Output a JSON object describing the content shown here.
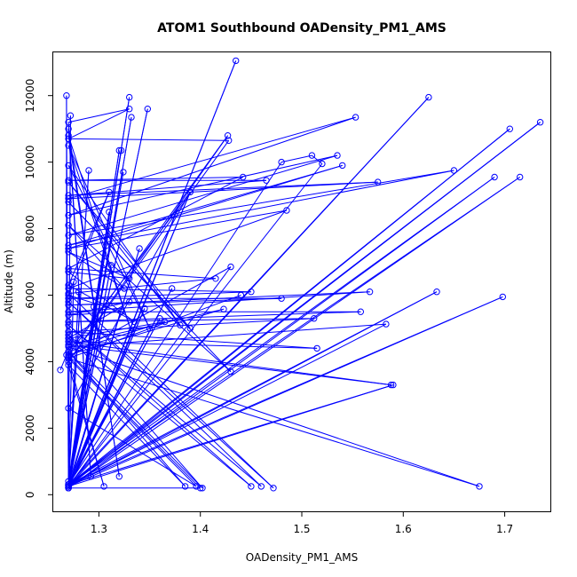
{
  "chart_data": {
    "type": "line",
    "title": "ATOM1 Southbound OADensity_PM1_AMS",
    "xlabel": "OADensity_PM1_AMS",
    "ylabel": "Altitude (m)",
    "xlim": [
      1.255,
      1.745
    ],
    "ylim": [
      -500,
      13300
    ],
    "x_ticks": [
      1.3,
      1.4,
      1.5,
      1.6,
      1.7
    ],
    "y_ticks": [
      0,
      2000,
      4000,
      6000,
      8000,
      10000,
      12000
    ],
    "series_color": "#0000ff",
    "markers": "open-circle",
    "points": [
      [
        1.262,
        3750
      ],
      [
        1.268,
        4200
      ],
      [
        1.268,
        12000
      ],
      [
        1.27,
        200
      ],
      [
        1.272,
        11400
      ],
      [
        1.27,
        300
      ],
      [
        1.275,
        6400
      ],
      [
        1.27,
        250
      ],
      [
        1.28,
        6100
      ],
      [
        1.27,
        300
      ],
      [
        1.29,
        9750
      ],
      [
        1.27,
        400
      ],
      [
        1.295,
        5650
      ],
      [
        1.27,
        250
      ],
      [
        1.31,
        8500
      ],
      [
        1.27,
        300
      ],
      [
        1.312,
        6900
      ],
      [
        1.27,
        200
      ],
      [
        1.32,
        10350
      ],
      [
        1.27,
        300
      ],
      [
        1.322,
        10350
      ],
      [
        1.27,
        250
      ],
      [
        1.324,
        9700
      ],
      [
        1.27,
        300
      ],
      [
        1.33,
        11950
      ],
      [
        1.27,
        200
      ],
      [
        1.332,
        11350
      ],
      [
        1.27,
        250
      ],
      [
        1.348,
        11600
      ],
      [
        1.27,
        300
      ],
      [
        1.34,
        7400
      ],
      [
        1.27,
        200
      ],
      [
        1.345,
        5600
      ],
      [
        1.27,
        300
      ],
      [
        1.36,
        5300
      ],
      [
        1.27,
        250
      ],
      [
        1.372,
        6200
      ],
      [
        1.27,
        300
      ],
      [
        1.39,
        9100
      ],
      [
        1.27,
        200
      ],
      [
        1.4,
        200
      ],
      [
        1.27,
        4150
      ],
      [
        1.43,
        6850
      ],
      [
        1.27,
        250
      ],
      [
        1.435,
        13050
      ],
      [
        1.27,
        300
      ],
      [
        1.48,
        10000
      ],
      [
        1.51,
        10200
      ],
      [
        1.52,
        9950
      ],
      [
        1.27,
        250
      ],
      [
        1.625,
        11950
      ],
      [
        1.27,
        300
      ],
      [
        1.705,
        11000
      ],
      [
        1.27,
        250
      ],
      [
        1.735,
        11200
      ],
      [
        1.27,
        300
      ],
      [
        1.69,
        9550
      ],
      [
        1.27,
        200
      ],
      [
        1.715,
        9550
      ],
      [
        1.27,
        300
      ],
      [
        1.633,
        6100
      ],
      [
        1.27,
        250
      ],
      [
        1.698,
        5950
      ],
      [
        1.27,
        300
      ],
      [
        1.59,
        3300
      ],
      [
        1.27,
        250
      ],
      [
        1.583,
        5130
      ],
      [
        1.27,
        4450
      ],
      [
        1.675,
        250
      ],
      [
        1.27,
        4100
      ],
      [
        1.305,
        250
      ],
      [
        1.27,
        3900
      ],
      [
        1.385,
        250
      ],
      [
        1.27,
        4300
      ],
      [
        1.402,
        200
      ],
      [
        1.27,
        4800
      ],
      [
        1.45,
        250
      ],
      [
        1.27,
        5100
      ],
      [
        1.46,
        250
      ],
      [
        1.27,
        5800
      ],
      [
        1.472,
        200
      ],
      [
        1.27,
        6050
      ],
      [
        1.415,
        6500
      ],
      [
        1.27,
        6800
      ],
      [
        1.442,
        9550
      ],
      [
        1.27,
        9450
      ],
      [
        1.465,
        9450
      ],
      [
        1.27,
        9000
      ],
      [
        1.575,
        9400
      ],
      [
        1.27,
        8900
      ],
      [
        1.553,
        11350
      ],
      [
        1.27,
        8400
      ],
      [
        1.535,
        10200
      ],
      [
        1.27,
        7800
      ],
      [
        1.65,
        9750
      ],
      [
        1.27,
        7500
      ],
      [
        1.54,
        9900
      ],
      [
        1.27,
        7400
      ],
      [
        1.485,
        8550
      ],
      [
        1.27,
        6200
      ],
      [
        1.45,
        6100
      ],
      [
        1.27,
        5900
      ],
      [
        1.48,
        5900
      ],
      [
        1.27,
        5700
      ],
      [
        1.567,
        6100
      ],
      [
        1.27,
        5500
      ],
      [
        1.558,
        5500
      ],
      [
        1.27,
        5200
      ],
      [
        1.512,
        5300
      ],
      [
        1.27,
        4900
      ],
      [
        1.515,
        4400
      ],
      [
        1.27,
        4600
      ],
      [
        1.588,
        3300
      ],
      [
        1.27,
        4500
      ],
      [
        1.423,
        5580
      ],
      [
        1.27,
        4200
      ],
      [
        1.427,
        10800
      ],
      [
        1.27,
        4000
      ],
      [
        1.428,
        10650
      ],
      [
        1.27,
        10700
      ],
      [
        1.33,
        11600
      ],
      [
        1.27,
        11200
      ],
      [
        1.292,
        550
      ],
      [
        1.27,
        11000
      ],
      [
        1.32,
        550
      ],
      [
        1.27,
        10800
      ],
      [
        1.332,
        4900
      ],
      [
        1.27,
        10500
      ],
      [
        1.35,
        5000
      ],
      [
        1.27,
        9900
      ],
      [
        1.38,
        5100
      ],
      [
        1.27,
        9400
      ],
      [
        1.39,
        5000
      ],
      [
        1.27,
        8800
      ],
      [
        1.43,
        3700
      ],
      [
        1.27,
        8100
      ],
      [
        1.325,
        6200
      ],
      [
        1.27,
        7300
      ],
      [
        1.33,
        6500
      ],
      [
        1.27,
        6700
      ],
      [
        1.335,
        5200
      ],
      [
        1.27,
        6300
      ],
      [
        1.31,
        9100
      ],
      [
        1.27,
        6000
      ],
      [
        1.322,
        5500
      ],
      [
        1.27,
        5400
      ],
      [
        1.33,
        5800
      ],
      [
        1.27,
        4700
      ],
      [
        1.365,
        5200
      ],
      [
        1.27,
        4300
      ],
      [
        1.39,
        9100
      ],
      [
        1.27,
        2600
      ],
      [
        1.396,
        250
      ],
      [
        1.27,
        4100
      ],
      [
        1.44,
        6000
      ]
    ]
  }
}
